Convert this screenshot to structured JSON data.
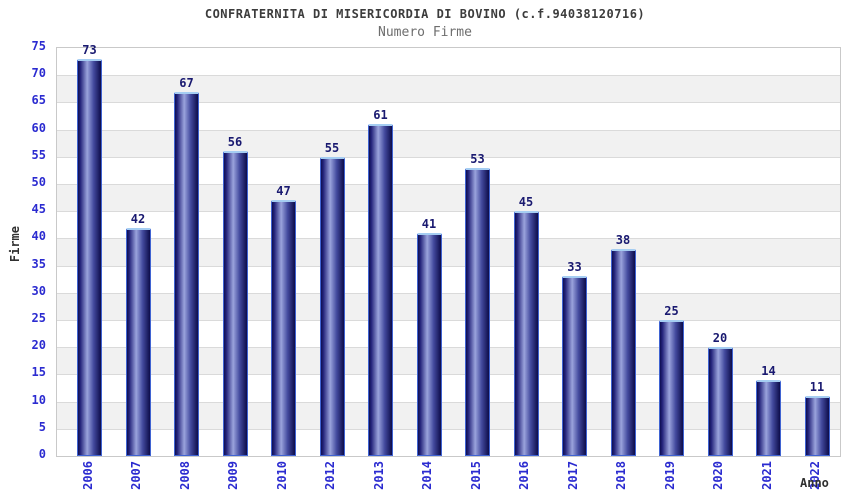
{
  "chart_data": {
    "type": "bar",
    "title": "CONFRATERNITA DI MISERICORDIA DI BOVINO (c.f.94038120716)",
    "subtitle": "Numero Firme",
    "xlabel": "Anno",
    "ylabel": "Firme",
    "categories": [
      "2006",
      "2007",
      "2008",
      "2009",
      "2010",
      "2012",
      "2013",
      "2014",
      "2015",
      "2016",
      "2017",
      "2018",
      "2019",
      "2020",
      "2021",
      "2022"
    ],
    "values": [
      73,
      42,
      67,
      56,
      47,
      55,
      61,
      41,
      53,
      45,
      33,
      38,
      25,
      20,
      14,
      11
    ],
    "ylim": [
      0,
      75
    ],
    "ytick_step": 5,
    "grid": true,
    "legend_position": "none",
    "band_fill": "alternating horizontal bands every 5 units",
    "colors": {
      "tick_label": "#2b2bd0",
      "value_label": "#191970",
      "title": "#3c3c3c",
      "subtitle": "#6e6e6e",
      "axis_label": "#303030",
      "bar_dark": "#0f0f52",
      "bar_highlight": "#9aa3dc",
      "bar_border": "#3f63d2",
      "bar_cap": "#a5cdf2",
      "band_gray": "#f1f1f1",
      "gridline": "#dadada",
      "plot_border": "#c9c9c9",
      "background": "#ffffff"
    }
  }
}
